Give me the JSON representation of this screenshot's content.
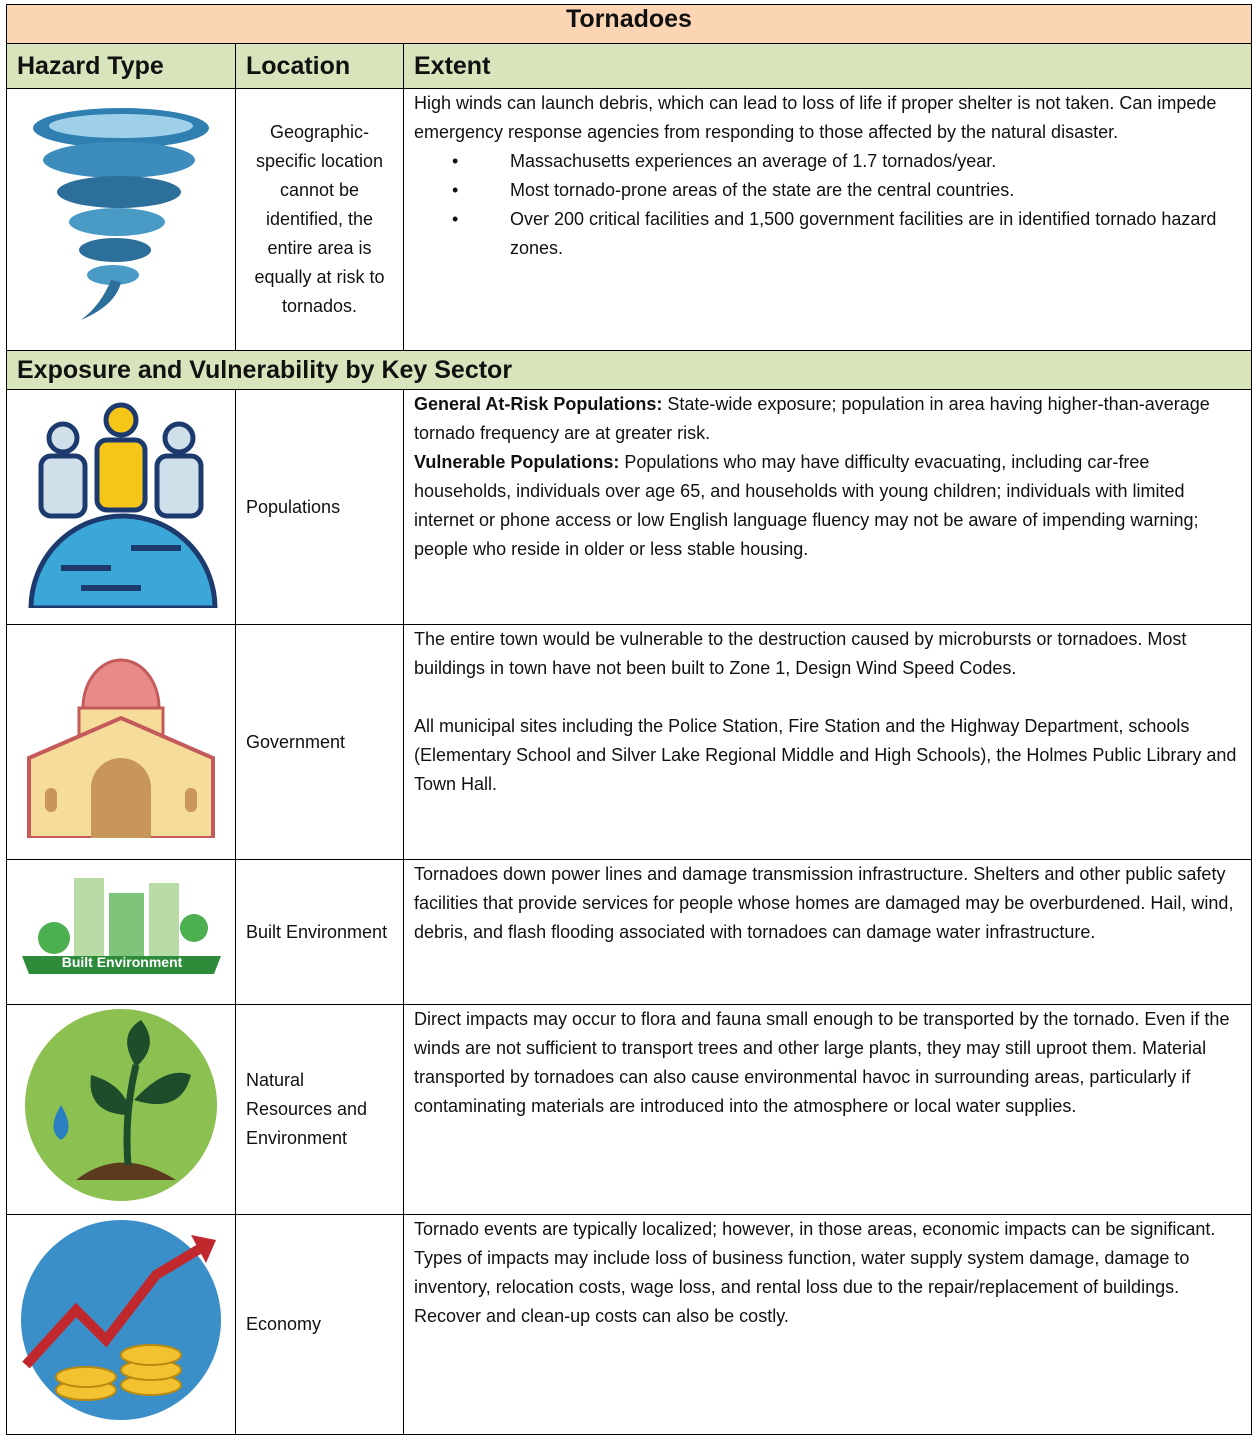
{
  "title": "Tornadoes",
  "header": [
    "Hazard Type",
    "Location",
    "Extent"
  ],
  "hazard": {
    "location": "Geographic-specific location cannot be identified, the entire area is equally at risk to tornados.",
    "extent": "High winds can launch debris, which can lead to loss of life if proper shelter is not taken.  Can impede emergency response agencies from responding to those affected by the natural disaster.",
    "bullets": [
      "Massachusetts experiences an average of 1.7 tornados/year.",
      "Most tornado-prone areas of the state are the central countries.",
      "Over 200 critical facilities and 1,500 government facilities are in identified tornado hazard zones."
    ]
  },
  "section_title": "Exposure and Vulnerability by Key Sector",
  "sectors": [
    {
      "name": "Populations",
      "paragraphs": [
        {
          "label": "General At-Risk Populations:",
          "text": "State-wide exposure; population in area having higher-than-average tornado frequency are at greater risk."
        },
        {
          "label": "Vulnerable Populations:",
          "text": "Populations who may have difficulty evacuating, including car-free households, individuals over age 65, and households with young children; individuals with limited internet or phone access or low English language fluency may not be aware of impending warning; people who reside in older or less stable housing."
        }
      ]
    },
    {
      "name": "Government",
      "paragraphs": [
        "The entire town would be vulnerable to the destruction caused by microbursts or tornadoes.  Most buildings in town have not been built to Zone 1, Design Wind Speed Codes.",
        "All municipal sites including the Police Station, Fire Station and the Highway Department, schools (Elementary School and Silver Lake Regional Middle and High Schools), the Holmes Public Library and Town Hall."
      ]
    },
    {
      "name": "Built Environment",
      "icon_label": "Built Environment",
      "paragraphs": [
        "Tornadoes down power lines and damage transmission infrastructure.  Shelters and other public safety facilities that provide services for people whose homes are damaged may be overburdened.  Hail, wind, debris, and flash flooding associated with tornadoes can damage water infrastructure."
      ]
    },
    {
      "name": "Natural Resources and Environment",
      "paragraphs": [
        "Direct impacts may occur to flora and fauna small enough to be transported by the tornado.  Even if the winds are not sufficient to transport trees and other large plants, they may still uproot them.  Material transported by tornadoes can also cause environmental havoc in surrounding areas, particularly if contaminating materials are introduced into the atmosphere or local water supplies."
      ]
    },
    {
      "name": "Economy",
      "paragraphs": [
        "Tornado events are typically localized; however, in those areas, economic impacts can be significant.  Types of impacts may include loss of business function, water supply system damage, damage to inventory, relocation costs, wage loss, and rental loss due to the repair/replacement of buildings. Recover and clean-up costs can also be costly."
      ]
    }
  ]
}
